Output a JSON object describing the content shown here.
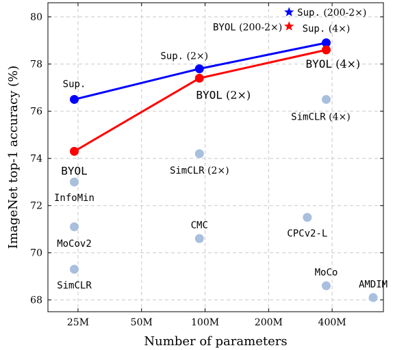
{
  "chart_data": {
    "type": "scatter",
    "xlabel": "Number of parameters",
    "ylabel": "ImageNet top-1 accuracy (%)",
    "x_scale": "log",
    "xlim": [
      18,
      700
    ],
    "ylim": [
      67.5,
      80.6
    ],
    "x_ticks": [
      {
        "value": 25,
        "label": "25M"
      },
      {
        "value": 50,
        "label": "50M"
      },
      {
        "value": 100,
        "label": "100M"
      },
      {
        "value": 200,
        "label": "200M"
      },
      {
        "value": 400,
        "label": "400M"
      }
    ],
    "y_ticks": [
      68,
      70,
      72,
      74,
      76,
      78,
      80
    ],
    "grid": true,
    "series": [
      {
        "name": "Sup.",
        "color": "#0000ff",
        "points": [
          {
            "x": 24,
            "y": 76.5,
            "label": "Sup.",
            "label_prefix": "",
            "label_suffix": ""
          },
          {
            "x": 94,
            "y": 77.8,
            "label": "Sup.",
            "label_prefix": "",
            "label_suffix": "(2×)"
          },
          {
            "x": 375,
            "y": 78.9,
            "label": "Sup.",
            "label_prefix": "",
            "label_suffix": "(4×)"
          }
        ]
      },
      {
        "name": "BYOL",
        "color": "#ff0000",
        "points": [
          {
            "x": 24,
            "y": 74.3,
            "label": "BYOL",
            "label_prefix": "",
            "label_suffix": ""
          },
          {
            "x": 94,
            "y": 77.4,
            "label": "BYOL",
            "label_prefix": "",
            "label_suffix": "(2×)"
          },
          {
            "x": 375,
            "y": 78.6,
            "label": "BYOL",
            "label_prefix": "",
            "label_suffix": "(4×)"
          }
        ]
      }
    ],
    "stars": [
      {
        "x": 250,
        "y": 80.2,
        "color": "#0000ff",
        "label": "Sup.",
        "label_suffix": "(200-2×)"
      },
      {
        "x": 250,
        "y": 79.6,
        "color": "#ff0000",
        "label": "BYOL",
        "label_suffix": "(200-2×)"
      }
    ],
    "others": {
      "color": "#a8bfde",
      "points": [
        {
          "x": 24,
          "y": 73.0,
          "label": "InfoMin",
          "label_suffix": ""
        },
        {
          "x": 24,
          "y": 71.1,
          "label": "MoCov2",
          "label_suffix": ""
        },
        {
          "x": 24,
          "y": 69.3,
          "label": "SimCLR",
          "label_suffix": ""
        },
        {
          "x": 94,
          "y": 74.2,
          "label": "SimCLR",
          "label_suffix": "(2×)"
        },
        {
          "x": 94,
          "y": 70.6,
          "label": "CMC",
          "label_suffix": ""
        },
        {
          "x": 305,
          "y": 71.5,
          "label": "CPCv2-L",
          "label_suffix": ""
        },
        {
          "x": 375,
          "y": 76.5,
          "label": "SimCLR",
          "label_suffix": "(4×)"
        },
        {
          "x": 375,
          "y": 68.6,
          "label": "MoCo",
          "label_suffix": ""
        },
        {
          "x": 626,
          "y": 68.1,
          "label": "AMDIM",
          "label_suffix": ""
        }
      ]
    }
  }
}
